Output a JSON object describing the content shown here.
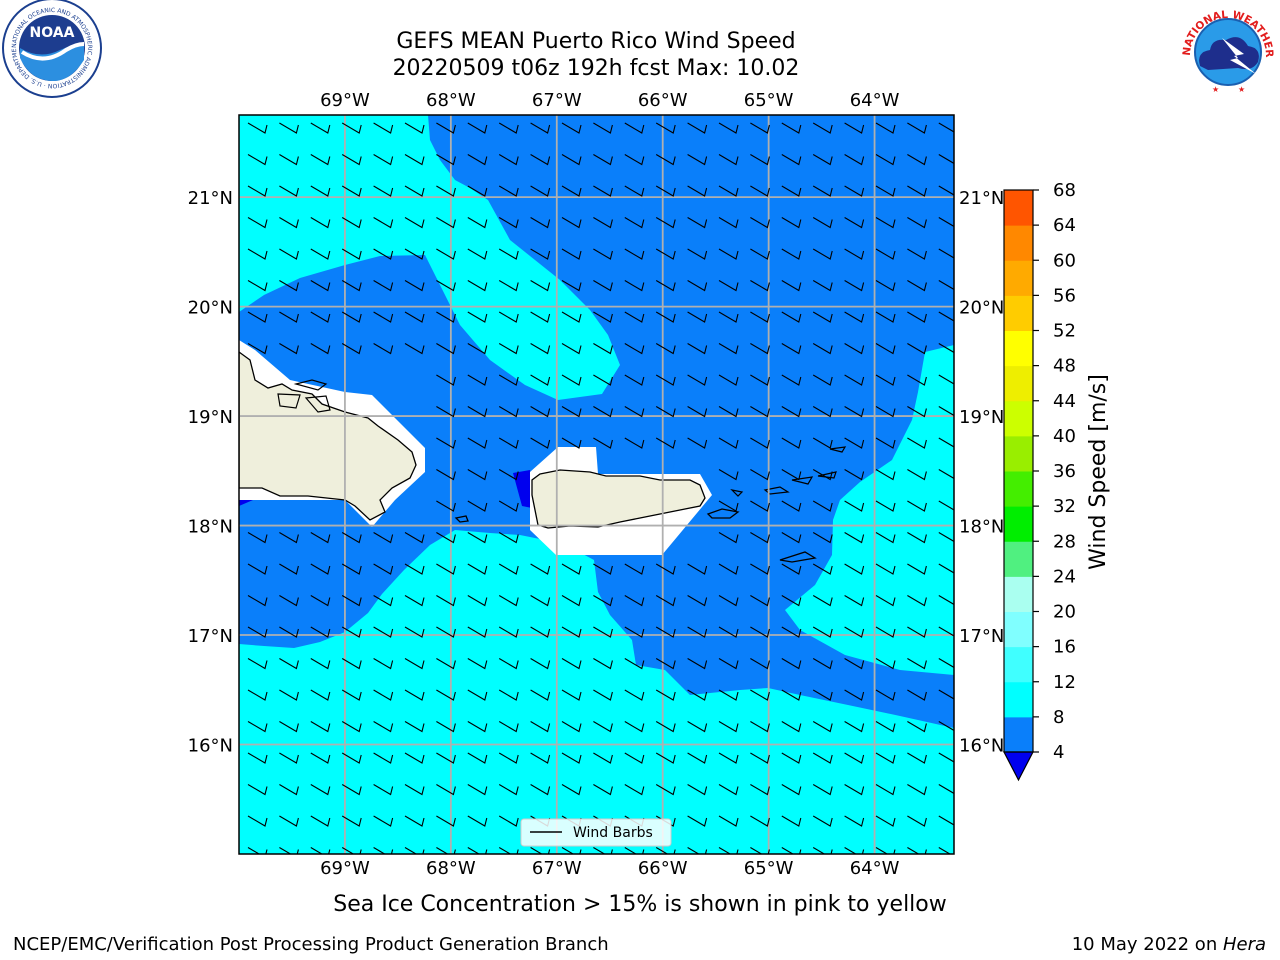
{
  "title": {
    "line1": "GEFS MEAN Puerto Rico Wind Speed",
    "line2": "20220509 t06z 192h fcst   Max: 10.02"
  },
  "logos": {
    "noaa": {
      "text": "NOAA",
      "ring_text": "NATIONAL OCEANIC AND ATMOSPHERIC ADMINISTRATION · U.S. DEPARTMENT OF COMMERCE"
    },
    "nws": {
      "ring_text": "NATIONAL WEATHER SERVICE"
    }
  },
  "map": {
    "lon_labels": [
      "69°W",
      "68°W",
      "67°W",
      "66°W",
      "65°W",
      "64°W"
    ],
    "lat_labels": [
      "21°N",
      "20°N",
      "19°N",
      "18°N",
      "17°N",
      "16°N"
    ],
    "extent": {
      "lon_min": -70.0,
      "lon_max": -63.25,
      "lat_min": 15.0,
      "lat_max": 21.75
    },
    "legend_label": "Wind Barbs",
    "colors": {
      "level_4_8": "#0a7ffa",
      "level_8_12": "#00ffff",
      "below_4": "#0000ee",
      "land": "#efefdc",
      "masked": "#ffffff",
      "grid": "#b0b0b0"
    }
  },
  "colorbar": {
    "label": "Wind Speed [m/s]",
    "ticks": [
      "4",
      "8",
      "12",
      "16",
      "20",
      "24",
      "28",
      "32",
      "36",
      "40",
      "44",
      "48",
      "52",
      "56",
      "60",
      "64",
      "68"
    ],
    "colors": [
      "#0a7ffa",
      "#00ffff",
      "#40ffff",
      "#80ffff",
      "#aafff0",
      "#50f080",
      "#00ee00",
      "#44ee00",
      "#99ee00",
      "#ccff00",
      "#eeee00",
      "#ffff00",
      "#ffcc00",
      "#ffaa00",
      "#ff8800",
      "#ff5500",
      "#ff2200",
      "#ff0000"
    ],
    "extend_color": "#0000ee"
  },
  "footer": {
    "note": "Sea Ice Concentration > 15% is shown in pink to yellow",
    "left": "NCEP/EMC/Verification Post Processing Product Generation Branch",
    "date": "10 May 2022 on ",
    "machine": "Hera"
  }
}
